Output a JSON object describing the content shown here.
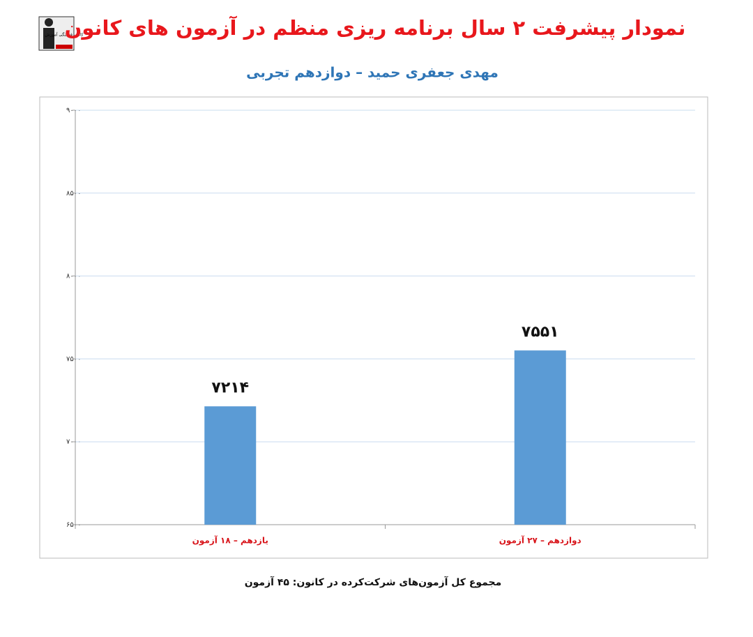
{
  "chart_data": {
    "type": "bar",
    "title": "نمودار پیشرفت ۲ سال برنامه ریزی منظم در آزمون های کانون",
    "subtitle": "مهدی جعفری حمید – دوازدهم تجربی",
    "logo_text": "کانون فرهنگی آموزش",
    "categories": [
      "یازدهم – ۱۸ آزمون",
      "دوازدهم – ۲۷ آزمون"
    ],
    "values": [
      7214,
      7551
    ],
    "value_labels": [
      "۷۲۱۴",
      "۷۵۵۱"
    ],
    "color": "#5b9bd5",
    "ylim": [
      6500,
      9000
    ],
    "yticks": [
      {
        "value": 6500,
        "label": "۶۵۰۰"
      },
      {
        "value": 7000,
        "label": "۷۰۰۰"
      },
      {
        "value": 7500,
        "label": "۷۵۰۰"
      },
      {
        "value": 8000,
        "label": "۸۰۰۰"
      },
      {
        "value": 8500,
        "label": "۸۵۰۰"
      },
      {
        "value": 9000,
        "label": "۹۰۰۰"
      }
    ],
    "grid": true,
    "footnote": "مجموع کل آزمون‌های شرکت‌کرده در کانون: ۴۵ آزمون"
  }
}
